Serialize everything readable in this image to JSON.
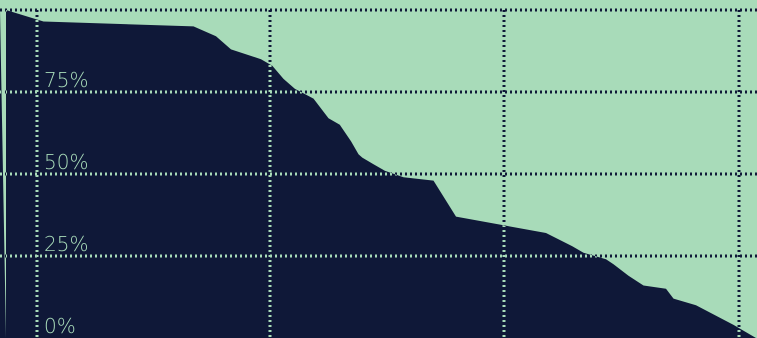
{
  "chart_data": {
    "type": "area",
    "title": "",
    "xlabel": "",
    "ylabel": "",
    "ylim": [
      0,
      100
    ],
    "y_ticks": [
      "0%",
      "25%",
      "50%",
      "75%"
    ],
    "y_tick_values": [
      0,
      25,
      50,
      75
    ],
    "grid": true,
    "colors": {
      "background": "#a8dbb9",
      "area": "#0f1838",
      "grid_on_dark": "#a8dbb9",
      "grid_on_light": "#0f1838",
      "tick_text": "#a8dbb9"
    },
    "series": [
      {
        "x": [
          0,
          5,
          25,
          28,
          30,
          34,
          35.5,
          37,
          38.5,
          41,
          43,
          44.5,
          46,
          47,
          47.5,
          49,
          50.5,
          53,
          57,
          60,
          72,
          75.5,
          77,
          80,
          81,
          83,
          85,
          88,
          89,
          92,
          97,
          100
        ],
        "values": [
          100,
          96.5,
          95,
          92,
          88,
          85,
          83,
          79,
          76,
          73,
          67,
          65,
          60,
          56,
          55,
          53,
          51,
          49,
          48,
          37,
          32,
          28,
          26,
          24,
          22.5,
          19,
          16,
          15,
          12,
          10,
          4,
          0
        ]
      }
    ]
  }
}
